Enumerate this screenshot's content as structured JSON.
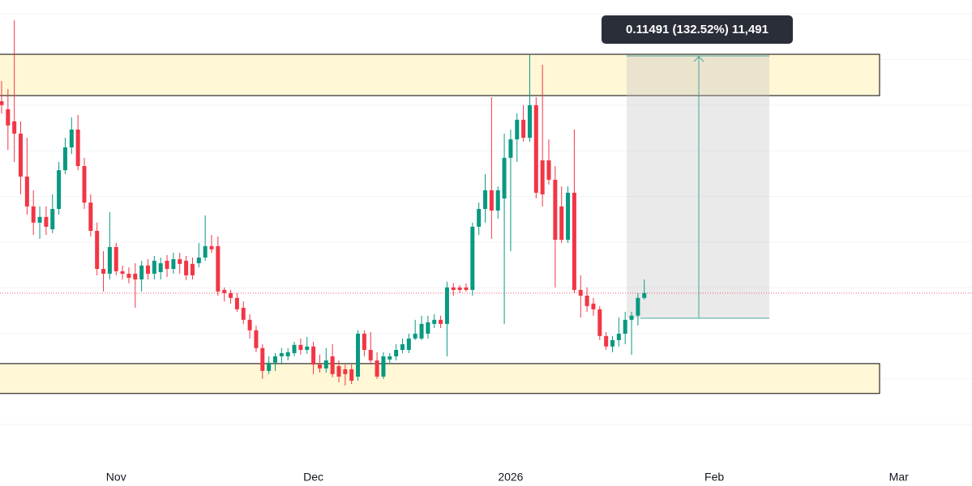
{
  "chart_data": {
    "type": "candlestick",
    "up_color": "#089981",
    "down_color": "#f23645",
    "xlim": [
      -0.25,
      152.5
    ],
    "ylim": [
      0.0237,
      0.2261
    ],
    "xticks": [
      {
        "value": 18,
        "label": "Nov"
      },
      {
        "value": 49,
        "label": "Dec"
      },
      {
        "value": 80,
        "label": "2026"
      },
      {
        "value": 112,
        "label": "Feb"
      },
      {
        "value": 141,
        "label": "Mar"
      }
    ],
    "ygrid": [
      0.04,
      0.06,
      0.08,
      0.1,
      0.12,
      0.14,
      0.16,
      0.18,
      0.2,
      0.22
    ],
    "zones": [
      [
        0.0536,
        0.0667
      ],
      [
        0.1842,
        0.2023
      ]
    ],
    "measure": {
      "label": "0.11491 (132.52%) 11,491",
      "from": 0.0866,
      "to": 0.2016
    },
    "open": [
      0.1817,
      0.1782,
      0.1729,
      0.1675,
      0.1487,
      0.1356,
      0.1285,
      0.131,
      0.1256,
      0.1345,
      0.1515,
      0.1615,
      0.1693,
      0.1533,
      0.1373,
      0.1249,
      0.1082,
      0.1061,
      0.1178,
      0.1072,
      0.1061,
      0.1061,
      0.1036,
      0.1097,
      0.1061,
      0.1068,
      0.1118,
      0.1082,
      0.1125,
      0.1118,
      0.1104,
      0.1107,
      0.1132,
      0.1182,
      0.1182,
      0.099,
      0.0976,
      0.0955,
      0.0912,
      0.0859,
      0.0813,
      0.0735,
      0.0635,
      0.0671,
      0.0699,
      0.0699,
      0.0713,
      0.0749,
      0.0727,
      0.0742,
      0.0663,
      0.0646,
      0.0699,
      0.0656,
      0.0642,
      0.0642,
      0.061,
      0.0798,
      0.0727,
      0.0681,
      0.061,
      0.0685,
      0.0699,
      0.0727,
      0.0727,
      0.0777,
      0.0777,
      0.0798,
      0.0841,
      0.0859,
      0.0841,
      0.1001,
      0.1001,
      0.1001,
      0.099,
      0.1267,
      0.1345,
      0.1427,
      0.1338,
      0.1391,
      0.1569,
      0.165,
      0.1736,
      0.1657,
      0.18,
      0.1558,
      0.1558,
      0.1473,
      0.1356,
      0.121,
      0.1416,
      0.099,
      0.0965,
      0.093,
      0.0905,
      0.0788,
      0.0742,
      0.077,
      0.0798,
      0.0859,
      0.0877,
      0.0955
    ],
    "high": [
      0.1906,
      0.1871,
      0.2172,
      0.1729,
      0.1657,
      0.1427,
      0.1356,
      0.1356,
      0.1409,
      0.1551,
      0.1657,
      0.1746,
      0.1757,
      0.1569,
      0.1409,
      0.1285,
      0.116,
      0.1331,
      0.1196,
      0.1097,
      0.1089,
      0.1107,
      0.1118,
      0.1125,
      0.1139,
      0.1132,
      0.1143,
      0.1153,
      0.1153,
      0.1139,
      0.1132,
      0.1196,
      0.1317,
      0.1231,
      0.1224,
      0.1001,
      0.099,
      0.0976,
      0.094,
      0.0884,
      0.0834,
      0.0752,
      0.0699,
      0.0713,
      0.0735,
      0.0735,
      0.0763,
      0.0777,
      0.0784,
      0.0763,
      0.0706,
      0.0735,
      0.0752,
      0.0681,
      0.0663,
      0.0663,
      0.0813,
      0.0813,
      0.0805,
      0.0717,
      0.0717,
      0.0713,
      0.0752,
      0.0777,
      0.0798,
      0.0859,
      0.0877,
      0.0877,
      0.0884,
      0.0877,
      0.1026,
      0.1019,
      0.1011,
      0.1019,
      0.1285,
      0.1373,
      0.1498,
      0.1835,
      0.1444,
      0.1675,
      0.1693,
      0.1764,
      0.18,
      0.202,
      0.1835,
      0.1977,
      0.165,
      0.1533,
      0.1444,
      0.1444,
      0.1693,
      0.1054,
      0.1001,
      0.0955,
      0.0919,
      0.0805,
      0.0788,
      0.0869,
      0.0894,
      0.0894,
      0.0976,
      0.1036
    ],
    "low": [
      0.1764,
      0.1604,
      0.1551,
      0.1409,
      0.132,
      0.1231,
      0.1214,
      0.1231,
      0.1239,
      0.132,
      0.1498,
      0.1586,
      0.1515,
      0.1345,
      0.1224,
      0.1054,
      0.0983,
      0.1036,
      0.1054,
      0.1036,
      0.1019,
      0.0912,
      0.0983,
      0.1036,
      0.1036,
      0.1036,
      0.1047,
      0.1061,
      0.1061,
      0.1033,
      0.1036,
      0.1089,
      0.1118,
      0.1153,
      0.0965,
      0.094,
      0.093,
      0.0894,
      0.0841,
      0.0777,
      0.0717,
      0.06,
      0.0621,
      0.0635,
      0.0663,
      0.0681,
      0.0699,
      0.0706,
      0.071,
      0.0621,
      0.0628,
      0.0628,
      0.0607,
      0.0585,
      0.0571,
      0.0578,
      0.0592,
      0.0699,
      0.0663,
      0.06,
      0.06,
      0.0671,
      0.0681,
      0.0713,
      0.0713,
      0.077,
      0.077,
      0.0777,
      0.0823,
      0.0823,
      0.0699,
      0.0965,
      0.0976,
      0.0983,
      0.0965,
      0.1231,
      0.1285,
      0.1214,
      0.1302,
      0.0841,
      0.116,
      0.1551,
      0.164,
      0.164,
      0.1391,
      0.1356,
      0.1452,
      0.1001,
      0.1196,
      0.1196,
      0.0976,
      0.0869,
      0.0894,
      0.0877,
      0.077,
      0.0727,
      0.0717,
      0.0742,
      0.0752,
      0.0706,
      0.0834,
      0.0948
    ],
    "close": [
      0.18,
      0.1711,
      0.1675,
      0.1487,
      0.1356,
      0.1285,
      0.131,
      0.1267,
      0.1345,
      0.1515,
      0.1615,
      0.1693,
      0.1533,
      0.1373,
      0.1249,
      0.1082,
      0.1061,
      0.1178,
      0.1072,
      0.1061,
      0.1043,
      0.1036,
      0.1097,
      0.1061,
      0.1118,
      0.1107,
      0.1082,
      0.1125,
      0.1104,
      0.1054,
      0.1054,
      0.1132,
      0.1182,
      0.1168,
      0.0983,
      0.0976,
      0.0955,
      0.0905,
      0.0859,
      0.0813,
      0.0735,
      0.0635,
      0.0671,
      0.0699,
      0.0713,
      0.0717,
      0.0749,
      0.0727,
      0.0742,
      0.0663,
      0.0646,
      0.0681,
      0.0621,
      0.061,
      0.0621,
      0.0592,
      0.0798,
      0.0727,
      0.0681,
      0.061,
      0.0699,
      0.0699,
      0.0727,
      0.0752,
      0.0777,
      0.0798,
      0.0841,
      0.0848,
      0.0859,
      0.0841,
      0.1001,
      0.099,
      0.099,
      0.099,
      0.1267,
      0.1345,
      0.1427,
      0.1338,
      0.1427,
      0.1569,
      0.165,
      0.1736,
      0.1657,
      0.18,
      0.1416,
      0.1409,
      0.1473,
      0.121,
      0.121,
      0.1416,
      0.099,
      0.0965,
      0.0919,
      0.0905,
      0.0788,
      0.0742,
      0.077,
      0.0798,
      0.0859,
      0.0877,
      0.0955,
      0.0976
    ]
  }
}
